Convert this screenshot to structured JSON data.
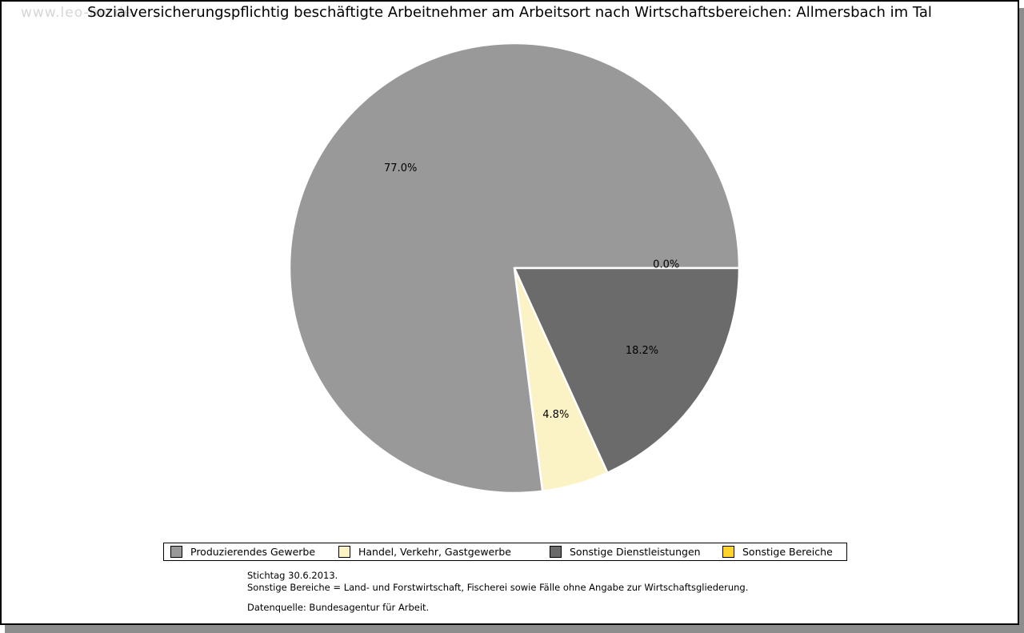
{
  "watermark": "www.leo-bw.de",
  "title": "Sozialversicherungspflichtig beschäftigte Arbeitnehmer am Arbeitsort nach Wirtschaftsbereichen: Allmersbach im Tal",
  "chart_data": {
    "type": "pie",
    "title": "Sozialversicherungspflichtig beschäftigte Arbeitnehmer am Arbeitsort nach Wirtschaftsbereichen: Allmersbach im Tal",
    "unit": "%",
    "start_angle_deg": 0,
    "direction": "counterclockwise",
    "legend_position": "bottom",
    "slices": [
      {
        "label": "Produzierendes Gewerbe",
        "value": 77.0,
        "display": "77.0%",
        "color": "#999999"
      },
      {
        "label": "Handel, Verkehr, Gastgewerbe",
        "value": 4.8,
        "display": "4.8%",
        "color": "#FBF3C6"
      },
      {
        "label": "Sonstige Dienstleistungen",
        "value": 18.2,
        "display": "18.2%",
        "color": "#6B6B6B"
      },
      {
        "label": "Sonstige Bereiche",
        "value": 0.0,
        "display": "0.0%",
        "color": "#FFD42A"
      }
    ]
  },
  "footer": {
    "stichtag": "Stichtag 30.6.2013.",
    "note": "Sonstige Bereiche = Land- und Forstwirtschaft, Fischerei sowie Fälle ohne Angabe zur Wirtschaftsgliederung.",
    "source": "Datenquelle: Bundesagentur für Arbeit."
  }
}
